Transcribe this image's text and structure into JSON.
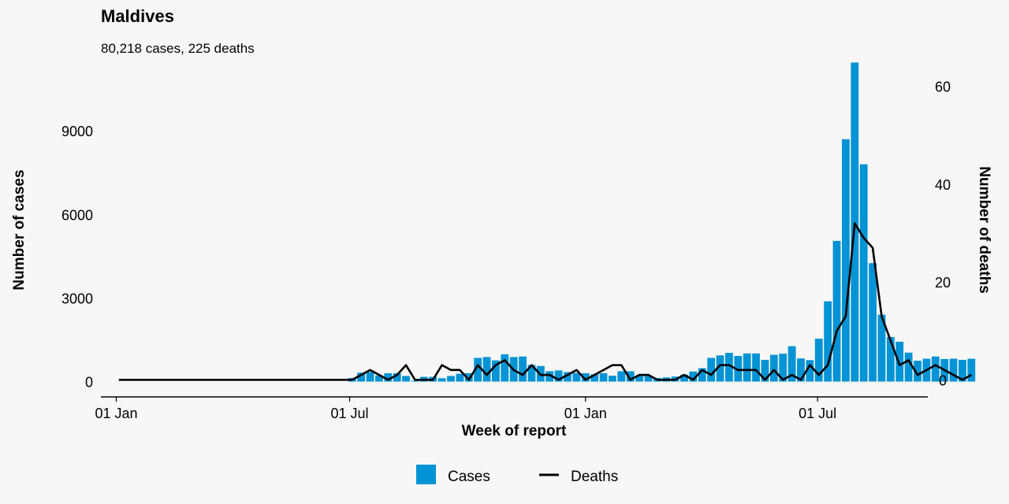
{
  "chart_data": {
    "type": "bar",
    "title": "Maldives",
    "subtitle": "80,218 cases, 225 deaths",
    "xlabel": "Week of report",
    "ylabel_left": "Number of cases",
    "ylabel_right": "Number of deaths",
    "x_start": "2020-01-03",
    "week_days": 7,
    "x_ticks": [
      {
        "label": "01 Jan",
        "date": "2020-01-01"
      },
      {
        "label": "01 Jul",
        "date": "2020-07-01"
      },
      {
        "label": "01 Jan",
        "date": "2021-01-01"
      },
      {
        "label": "01 Jul",
        "date": "2021-07-01"
      }
    ],
    "xlim": [
      "2019-12-20",
      "2021-09-25"
    ],
    "ylim_cases": [
      -550,
      12000
    ],
    "yticks_cases": [
      0,
      3000,
      6000,
      9000
    ],
    "ylim_deaths": [
      -3.5,
      68
    ],
    "yticks_deaths": [
      0,
      20,
      40,
      60
    ],
    "grid": false,
    "legend_position": "bottom",
    "series": [
      {
        "name": "Cases",
        "type": "bar",
        "color": "#0093d5",
        "values": [
          0,
          0,
          0,
          0,
          0,
          0,
          0,
          0,
          0,
          0,
          0,
          0,
          0,
          0,
          0,
          0,
          0,
          0,
          0,
          0,
          0,
          0,
          0,
          0,
          0,
          0,
          130,
          320,
          340,
          220,
          300,
          300,
          200,
          30,
          170,
          170,
          120,
          200,
          280,
          300,
          850,
          880,
          760,
          980,
          880,
          900,
          600,
          560,
          370,
          400,
          340,
          310,
          300,
          260,
          300,
          210,
          370,
          370,
          200,
          200,
          130,
          150,
          180,
          250,
          360,
          480,
          850,
          940,
          1030,
          920,
          1010,
          1010,
          780,
          960,
          1000,
          1270,
          830,
          770,
          1540,
          2880,
          5050,
          8700,
          11450,
          7800,
          4250,
          2400,
          1600,
          1430,
          1040,
          750,
          820,
          900,
          810,
          820,
          780,
          820
        ]
      },
      {
        "name": "Deaths",
        "type": "line",
        "color": "#000000",
        "values": [
          0,
          0,
          0,
          0,
          0,
          0,
          0,
          0,
          0,
          0,
          0,
          0,
          0,
          0,
          0,
          0,
          0,
          0,
          0,
          0,
          0,
          0,
          0,
          0,
          0,
          0,
          0,
          1,
          2,
          1,
          0,
          1,
          3,
          0,
          0,
          0,
          3,
          2,
          2,
          0,
          3,
          1,
          3,
          4,
          2,
          1,
          3,
          1,
          1,
          0,
          1,
          2,
          0,
          1,
          2,
          3,
          3,
          0,
          1,
          1,
          0,
          0,
          0,
          1,
          0,
          2,
          1,
          3,
          3,
          2,
          2,
          2,
          0,
          2,
          0,
          1,
          0,
          3,
          1,
          3,
          10,
          13,
          32,
          29,
          27,
          13,
          8,
          3,
          4,
          1,
          2,
          3,
          2,
          1,
          0,
          1
        ]
      }
    ]
  }
}
